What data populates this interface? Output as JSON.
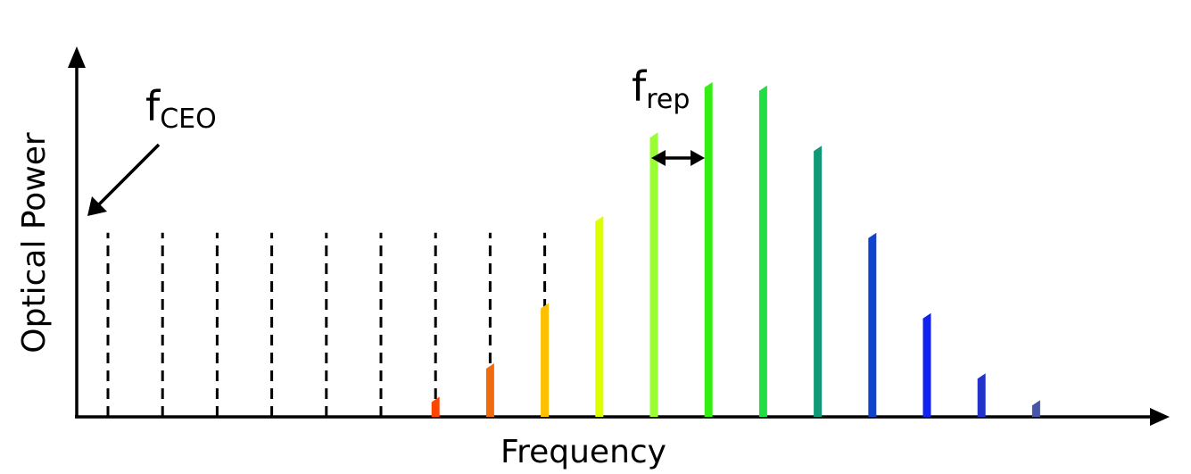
{
  "labels": {
    "y_axis": "Optical Power",
    "x_axis": "Frequency",
    "fceo_main": "f",
    "fceo_sub": "CEO",
    "frep_main": "f",
    "frep_sub": "rep"
  },
  "comb": {
    "dashed_lines": [
      {
        "index": 0,
        "height": 0.55
      },
      {
        "index": 1,
        "height": 0.55
      },
      {
        "index": 2,
        "height": 0.55
      },
      {
        "index": 3,
        "height": 0.55
      },
      {
        "index": 4,
        "height": 0.55
      },
      {
        "index": 5,
        "height": 0.55
      },
      {
        "index": 6,
        "height": 0.55
      },
      {
        "index": 7,
        "height": 0.55
      },
      {
        "index": 8,
        "height": 0.55
      }
    ],
    "teeth": [
      {
        "index": 6,
        "height": 0.06,
        "color": "#ff4500"
      },
      {
        "index": 7,
        "height": 0.16,
        "color": "#f06a10"
      },
      {
        "index": 8,
        "height": 0.34,
        "color": "#ffc000"
      },
      {
        "index": 9,
        "height": 0.6,
        "color": "#ddff00"
      },
      {
        "index": 10,
        "height": 0.85,
        "color": "#99ff33"
      },
      {
        "index": 11,
        "height": 1.0,
        "color": "#33ee11"
      },
      {
        "index": 12,
        "height": 0.99,
        "color": "#22dd44"
      },
      {
        "index": 13,
        "height": 0.81,
        "color": "#119977"
      },
      {
        "index": 14,
        "height": 0.55,
        "color": "#1144cc"
      },
      {
        "index": 15,
        "height": 0.31,
        "color": "#1122ee"
      },
      {
        "index": 16,
        "height": 0.13,
        "color": "#2233cc"
      },
      {
        "index": 17,
        "height": 0.05,
        "color": "#4455aa"
      }
    ]
  }
}
